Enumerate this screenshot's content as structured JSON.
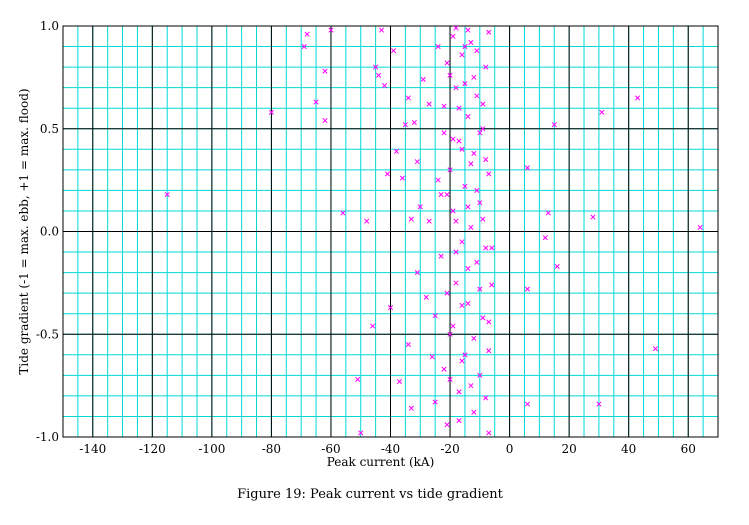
{
  "colors": {
    "minor_grid": "#00d8d8",
    "major_grid": "#000000",
    "marker": "#ff00ff",
    "background": "#ffffff"
  },
  "chart_data": {
    "type": "scatter",
    "marker": "x",
    "title": "Figure 19: Peak current vs tide gradient",
    "xlabel": "Peak current (kA)",
    "ylabel": "Tide gradient (-1 = max. ebb, +1 = max. flood)",
    "xlim": [
      -150,
      70
    ],
    "ylim": [
      -1.0,
      1.0
    ],
    "x_major_ticks": [
      -140,
      -120,
      -100,
      -80,
      -60,
      -40,
      -20,
      0,
      20,
      40,
      60
    ],
    "x_tick_labels": [
      "-140",
      "-120",
      "-100",
      "-80",
      "-60",
      "-40",
      "-20",
      "0",
      "20",
      "40",
      "60"
    ],
    "y_major_ticks": [
      -1.0,
      -0.5,
      0.0,
      0.5,
      1.0
    ],
    "y_tick_labels": [
      "-1.0",
      "-0.5",
      "0.0",
      "0.5",
      "1.0"
    ],
    "x_minor_step": 5,
    "y_minor_step": 0.1,
    "grid": true,
    "series": [
      {
        "points": [
          [
            -115,
            0.18
          ],
          [
            -80,
            0.58
          ],
          [
            -69,
            0.9
          ],
          [
            -68,
            0.96
          ],
          [
            -65,
            0.63
          ],
          [
            -62,
            0.54
          ],
          [
            -62,
            0.78
          ],
          [
            -60,
            0.98
          ],
          [
            -56,
            0.09
          ],
          [
            -51,
            -0.72
          ],
          [
            -50,
            -0.98
          ],
          [
            -48,
            0.05
          ],
          [
            -46,
            -0.46
          ],
          [
            -45,
            0.8
          ],
          [
            -44,
            0.76
          ],
          [
            -43,
            0.98
          ],
          [
            -42,
            0.71
          ],
          [
            -41,
            0.28
          ],
          [
            -40,
            -0.37
          ],
          [
            -39,
            0.88
          ],
          [
            -38,
            0.39
          ],
          [
            -37,
            -0.73
          ],
          [
            -36,
            0.26
          ],
          [
            -35,
            0.52
          ],
          [
            -34,
            0.65
          ],
          [
            -34,
            -0.55
          ],
          [
            -33,
            -0.86
          ],
          [
            -33,
            0.06
          ],
          [
            -32,
            0.53
          ],
          [
            -31,
            0.34
          ],
          [
            -31,
            -0.2
          ],
          [
            -30,
            0.12
          ],
          [
            -29,
            0.74
          ],
          [
            -28,
            -0.32
          ],
          [
            -27,
            0.62
          ],
          [
            -27,
            0.05
          ],
          [
            -26,
            -0.61
          ],
          [
            -25,
            -0.41
          ],
          [
            -25,
            -0.83
          ],
          [
            -24,
            0.9
          ],
          [
            -24,
            0.25
          ],
          [
            -23,
            0.18
          ],
          [
            -23,
            -0.12
          ],
          [
            -22,
            0.48
          ],
          [
            -22,
            -0.67
          ],
          [
            -21,
            0.82
          ],
          [
            -21,
            -0.94
          ],
          [
            -20,
            0.3
          ],
          [
            -20,
            -0.5
          ],
          [
            -19,
            0.95
          ],
          [
            -19,
            0.1
          ],
          [
            -18,
            0.7
          ],
          [
            -18,
            -0.25
          ],
          [
            -17,
            0.44
          ],
          [
            -17,
            -0.78
          ],
          [
            -16,
            0.86
          ],
          [
            -16,
            -0.05
          ],
          [
            -15,
            0.22
          ],
          [
            -15,
            -0.6
          ],
          [
            -14,
            0.56
          ],
          [
            -14,
            -0.35
          ],
          [
            -13,
            0.92
          ],
          [
            -13,
            0.02
          ],
          [
            -12,
            0.38
          ],
          [
            -12,
            -0.88
          ],
          [
            -11,
            0.66
          ],
          [
            -11,
            -0.15
          ],
          [
            -10,
            0.14
          ],
          [
            -10,
            -0.7
          ],
          [
            -9,
            0.5
          ],
          [
            -9,
            -0.42
          ],
          [
            -8,
            0.8
          ],
          [
            -8,
            -0.08
          ],
          [
            -7,
            0.28
          ],
          [
            -7,
            -0.58
          ],
          [
            -7,
            0.97
          ],
          [
            -7,
            -0.98
          ],
          [
            -22,
            0.61
          ],
          [
            -21,
            -0.3
          ],
          [
            -20,
            0.76
          ],
          [
            -19,
            -0.46
          ],
          [
            -18,
            0.05
          ],
          [
            -17,
            0.6
          ],
          [
            -16,
            -0.63
          ],
          [
            -15,
            0.9
          ],
          [
            -14,
            -0.18
          ],
          [
            -13,
            0.33
          ],
          [
            -12,
            -0.52
          ],
          [
            -11,
            0.88
          ],
          [
            -10,
            -0.28
          ],
          [
            -9,
            0.06
          ],
          [
            -8,
            -0.81
          ],
          [
            -19,
            0.45
          ],
          [
            -17,
            -0.92
          ],
          [
            -15,
            0.72
          ],
          [
            -13,
            -0.75
          ],
          [
            -11,
            0.2
          ],
          [
            -9,
            0.62
          ],
          [
            -21,
            0.18
          ],
          [
            -18,
            -0.1
          ],
          [
            -16,
            0.4
          ],
          [
            -14,
            0.98
          ],
          [
            -12,
            0.75
          ],
          [
            -10,
            0.48
          ],
          [
            -8,
            0.35
          ],
          [
            -6,
            -0.08
          ],
          [
            -6,
            -0.26
          ],
          [
            -7,
            -0.44
          ],
          [
            -20,
            -0.72
          ],
          [
            -18,
            0.99
          ],
          [
            -16,
            -0.36
          ],
          [
            -14,
            0.12
          ],
          [
            6,
            0.31
          ],
          [
            6,
            -0.28
          ],
          [
            6,
            -0.84
          ],
          [
            12,
            -0.03
          ],
          [
            13,
            0.09
          ],
          [
            15,
            0.52
          ],
          [
            16,
            -0.17
          ],
          [
            28,
            0.07
          ],
          [
            30,
            -0.84
          ],
          [
            31,
            0.58
          ],
          [
            43,
            0.65
          ],
          [
            49,
            -0.57
          ],
          [
            64,
            0.02
          ]
        ]
      }
    ]
  }
}
